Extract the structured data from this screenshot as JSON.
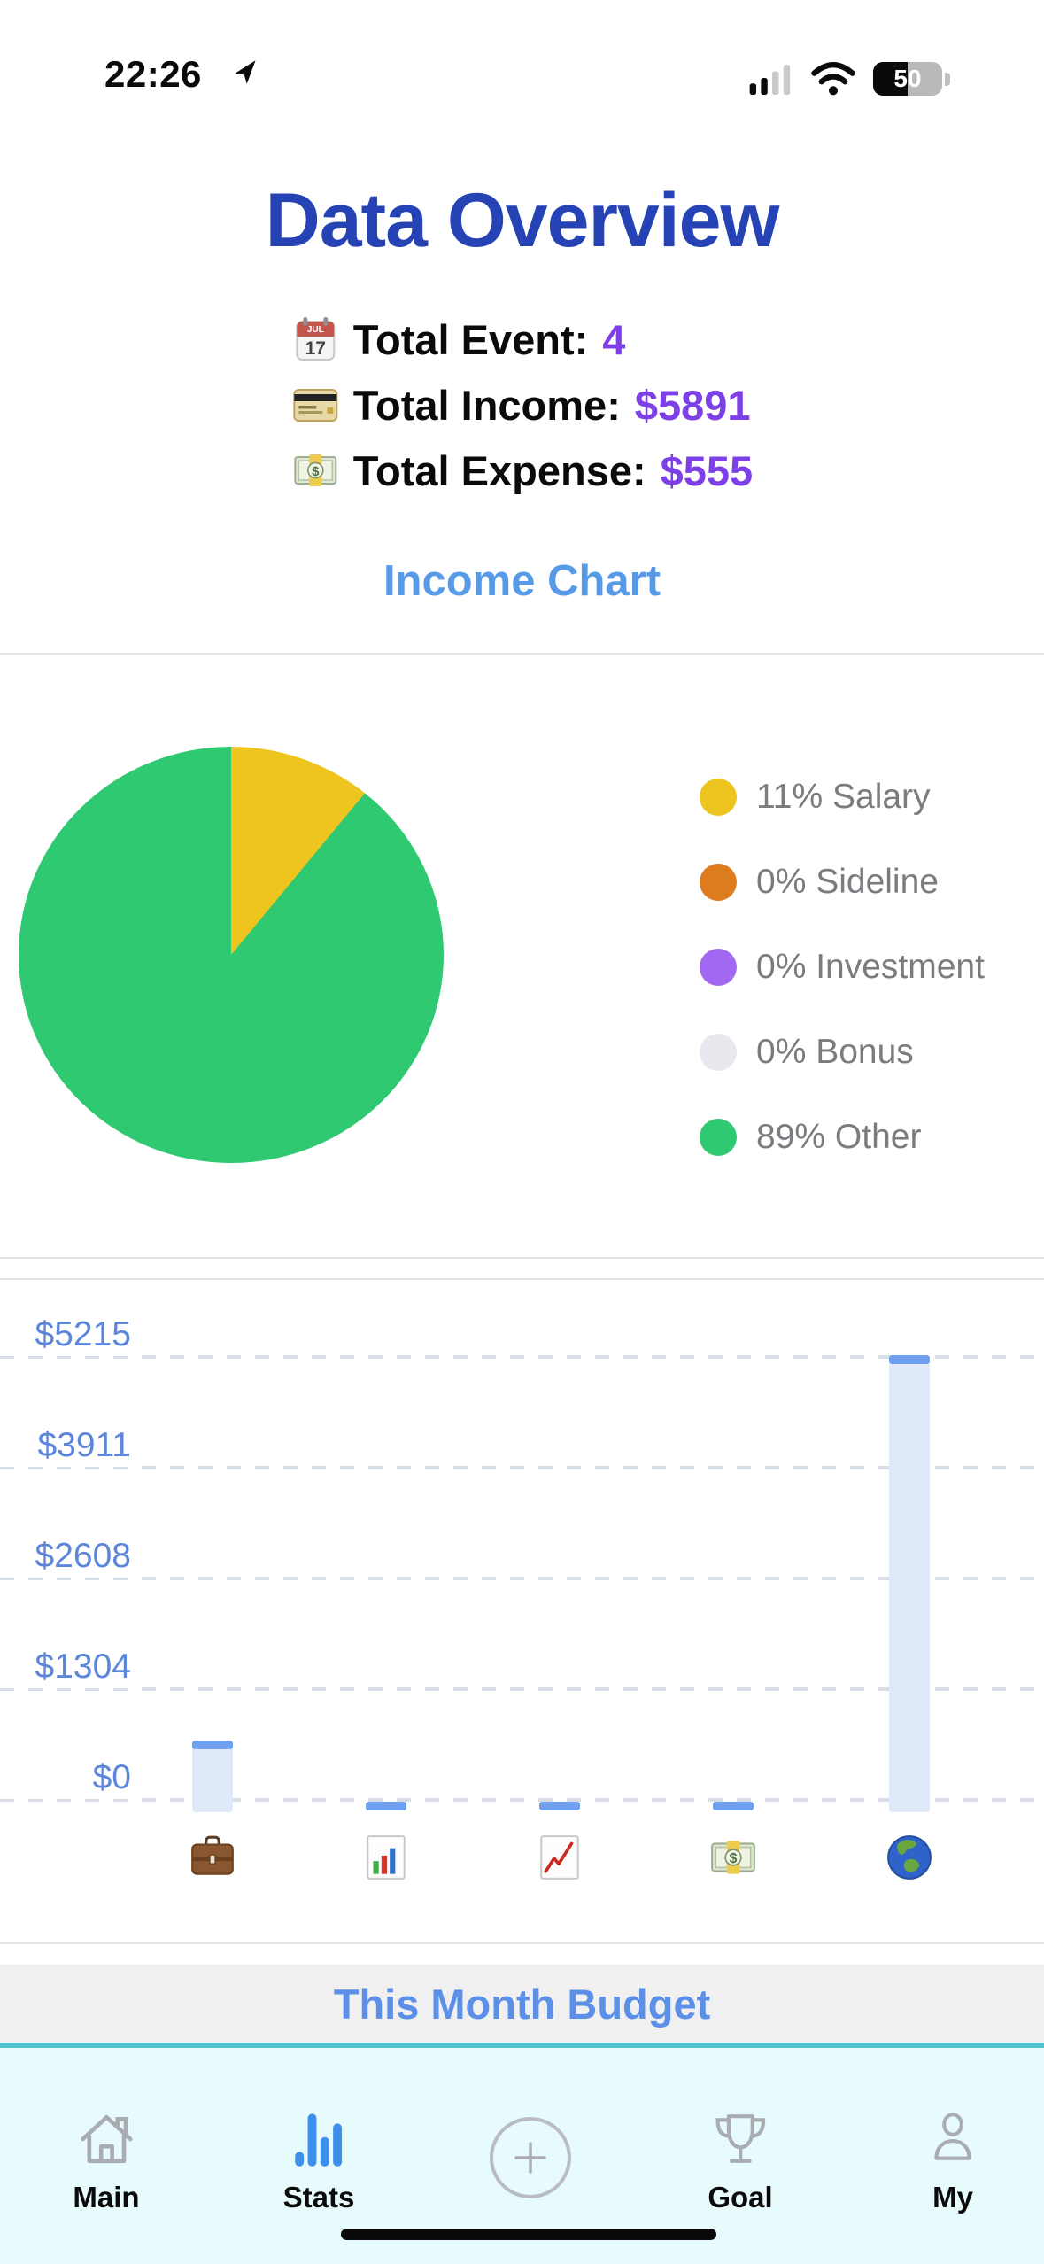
{
  "status_bar": {
    "time": "22:26",
    "battery_percent": "50"
  },
  "header": {
    "title": "Data Overview"
  },
  "stats": {
    "items": [
      {
        "icon": "calendar-icon",
        "label": "Total Event: ",
        "value": "4"
      },
      {
        "icon": "credit-card-icon",
        "label": "Total Income: ",
        "value": "$5891"
      },
      {
        "icon": "banknote-icon",
        "label": "Total Expense:",
        "value": "$555"
      }
    ]
  },
  "income_chart_link": {
    "label": "Income Chart"
  },
  "chart_data": [
    {
      "type": "pie",
      "title": "Income Chart",
      "slices": [
        {
          "label": "Salary",
          "pct": 11,
          "color": "#eec41f"
        },
        {
          "label": "Sideline",
          "pct": 0,
          "color": "#de7b1e"
        },
        {
          "label": "Investment",
          "pct": 0,
          "color": "#a368f1"
        },
        {
          "label": "Bonus",
          "pct": 0,
          "color": "#e9e8ee"
        },
        {
          "label": "Other",
          "pct": 89,
          "color": "#2fc971"
        }
      ],
      "legend_labels": [
        "11% Salary",
        "0% Sideline",
        "0% Investment",
        "0% Bonus",
        "89% Other"
      ],
      "legend_position": "right"
    },
    {
      "type": "bar",
      "categories": [
        "briefcase",
        "bar-chart",
        "chart-increasing",
        "banknote",
        "globe"
      ],
      "values": [
        676,
        0,
        0,
        0,
        5215
      ],
      "tick_labels": [
        "$5215",
        "$3911",
        "$2608",
        "$1304",
        "$0"
      ],
      "ticks": [
        5215,
        3911,
        2608,
        1304,
        0
      ],
      "ylim": [
        0,
        5215
      ],
      "grid": "dashed-horizontal",
      "xlabel": "",
      "ylabel": ""
    }
  ],
  "budget": {
    "header": "This Month Budget"
  },
  "tab_bar": {
    "items": [
      {
        "label": "Main",
        "icon": "home-icon",
        "active": false
      },
      {
        "label": "Stats",
        "icon": "bar-chart-icon",
        "active": true
      },
      {
        "label": "",
        "icon": "plus-icon",
        "active": false
      },
      {
        "label": "Goal",
        "icon": "trophy-icon",
        "active": false
      },
      {
        "label": "My",
        "icon": "person-icon",
        "active": false
      }
    ]
  },
  "colors": {
    "title_blue": "#2643b5",
    "value_purple": "#7d40e7",
    "link_blue": "#569ae8",
    "ylabel_blue": "#5c86da",
    "budget_blue": "#5b8fe8",
    "teal": "#53c1ce",
    "tabbar_bg": "#e7fafc",
    "bar_fill": "#dfe9fa",
    "bar_cap": "#6f9fef",
    "stats_icon_blue": "#3e8eec",
    "legend_text": "#7b7b80"
  }
}
